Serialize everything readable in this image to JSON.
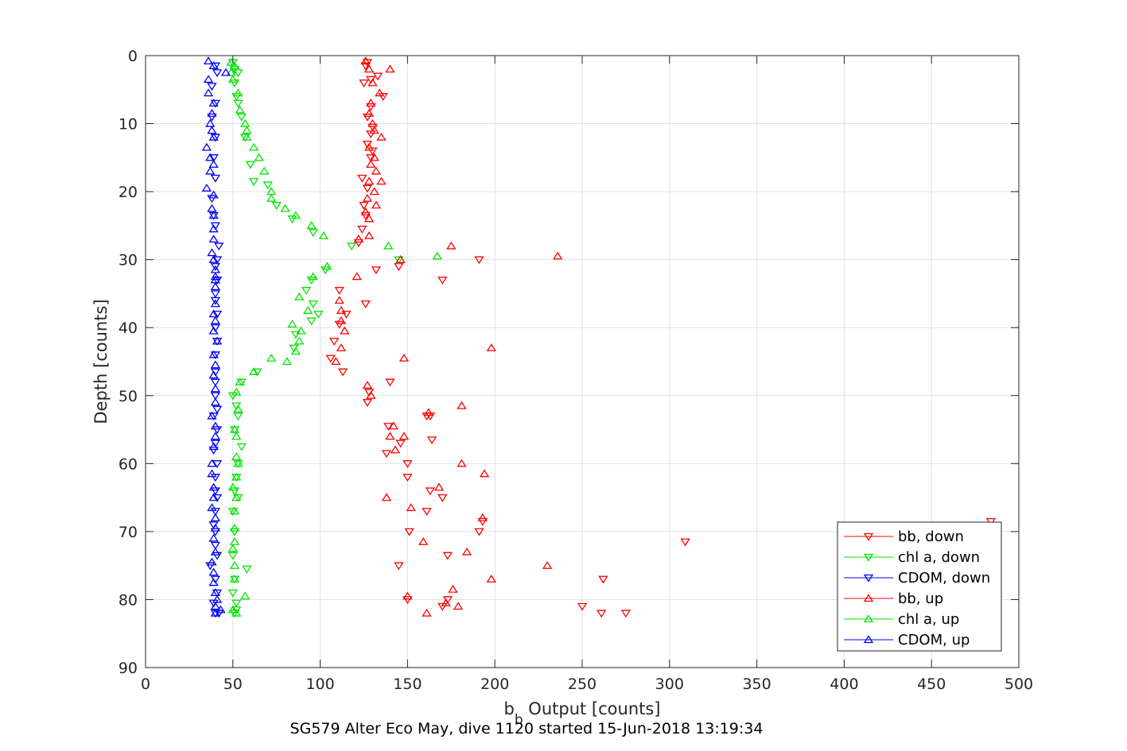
{
  "chart_data": {
    "type": "scatter",
    "xlabel_main": "b",
    "xlabel_sub": "b",
    "xlabel_rest": " Output [counts]",
    "ylabel": "Depth [counts]",
    "caption": "SG579 Alter Eco May, dive 1120 started 15-Jun-2018 13:19:34",
    "xlim": [
      0,
      500
    ],
    "ylim": [
      0,
      90
    ],
    "y_reversed": true,
    "grid": true,
    "x_ticks": [
      0,
      50,
      100,
      150,
      200,
      250,
      300,
      350,
      400,
      450,
      500
    ],
    "y_ticks": [
      0,
      10,
      20,
      30,
      40,
      50,
      60,
      70,
      80,
      90
    ],
    "legend_position": "bottom-right",
    "series": [
      {
        "name": "bb, down",
        "color": "#ff0000",
        "marker": "triangle-down",
        "points": [
          [
            127,
            1
          ],
          [
            126,
            1.5
          ],
          [
            133,
            3
          ],
          [
            129,
            3.5
          ],
          [
            125,
            4
          ],
          [
            136,
            6
          ],
          [
            129,
            7.5
          ],
          [
            127,
            9
          ],
          [
            130,
            10.5
          ],
          [
            129,
            11.5
          ],
          [
            127,
            13
          ],
          [
            130,
            14
          ],
          [
            129,
            15
          ],
          [
            124,
            18
          ],
          [
            127,
            19.5
          ],
          [
            125,
            22
          ],
          [
            126,
            23.5
          ],
          [
            124,
            25.5
          ],
          [
            122,
            27.5
          ],
          [
            132,
            31.5
          ],
          [
            126,
            36.5
          ],
          [
            170,
            33
          ],
          [
            191,
            30
          ],
          [
            145,
            31
          ],
          [
            111,
            34.5
          ],
          [
            115,
            38
          ],
          [
            111,
            39.5
          ],
          [
            108,
            42
          ],
          [
            106,
            44.5
          ],
          [
            113,
            46.5
          ],
          [
            140,
            48
          ],
          [
            127,
            51
          ],
          [
            128,
            49.5
          ],
          [
            139,
            54.5
          ],
          [
            146,
            57
          ],
          [
            138,
            58.5
          ],
          [
            150,
            60
          ],
          [
            150,
            62
          ],
          [
            163,
            64
          ],
          [
            161,
            67
          ],
          [
            151,
            70
          ],
          [
            145,
            75
          ],
          [
            173,
            73.5
          ],
          [
            173,
            80
          ],
          [
            262,
            77
          ],
          [
            250,
            81
          ],
          [
            261,
            82
          ],
          [
            275,
            82
          ],
          [
            309,
            71.5
          ],
          [
            484,
            68.5
          ],
          [
            193,
            68.5
          ],
          [
            191,
            70
          ],
          [
            170,
            65
          ],
          [
            163,
            53
          ],
          [
            164,
            56.5
          ],
          [
            161,
            53
          ],
          [
            150,
            80
          ],
          [
            170,
            81
          ]
        ]
      },
      {
        "name": "chl a, down",
        "color": "#00e600",
        "marker": "triangle-down",
        "points": [
          [
            50,
            1
          ],
          [
            51,
            2
          ],
          [
            53,
            2.5
          ],
          [
            51,
            4
          ],
          [
            52,
            6
          ],
          [
            53,
            7
          ],
          [
            55,
            9
          ],
          [
            57,
            12
          ],
          [
            60,
            16
          ],
          [
            62,
            18.5
          ],
          [
            70,
            19
          ],
          [
            75,
            22
          ],
          [
            84,
            24
          ],
          [
            96,
            26
          ],
          [
            145,
            30
          ],
          [
            118,
            28
          ],
          [
            103,
            31.5
          ],
          [
            95,
            33
          ],
          [
            92,
            34.5
          ],
          [
            96,
            36.5
          ],
          [
            99,
            38
          ],
          [
            95,
            39
          ],
          [
            86,
            41
          ],
          [
            85,
            43
          ],
          [
            64,
            46.5
          ],
          [
            55,
            48
          ],
          [
            50,
            50
          ],
          [
            52,
            51.5
          ],
          [
            53,
            53
          ],
          [
            51,
            55
          ],
          [
            55,
            57.5
          ],
          [
            53,
            60
          ],
          [
            52,
            62
          ],
          [
            51,
            64
          ],
          [
            53,
            65
          ],
          [
            50,
            67
          ],
          [
            51,
            70
          ],
          [
            50,
            73.5
          ],
          [
            58,
            75.5
          ],
          [
            51,
            77
          ],
          [
            50,
            79
          ],
          [
            52,
            80.5
          ],
          [
            51,
            82
          ],
          [
            52,
            81.5
          ]
        ]
      },
      {
        "name": "CDOM, down",
        "color": "#0000ff",
        "marker": "triangle-down",
        "points": [
          [
            40,
            1.5
          ],
          [
            41,
            2.5
          ],
          [
            38,
            4.5
          ],
          [
            40,
            7
          ],
          [
            38,
            9
          ],
          [
            40,
            12
          ],
          [
            39,
            15
          ],
          [
            40,
            18
          ],
          [
            38,
            21
          ],
          [
            39,
            23.5
          ],
          [
            40,
            25
          ],
          [
            42,
            28
          ],
          [
            41,
            30
          ],
          [
            40,
            31
          ],
          [
            41,
            33
          ],
          [
            40,
            35
          ],
          [
            40,
            36
          ],
          [
            41,
            38
          ],
          [
            40,
            40
          ],
          [
            41,
            42
          ],
          [
            40,
            44
          ],
          [
            40,
            46.5
          ],
          [
            40,
            48
          ],
          [
            40,
            50
          ],
          [
            41,
            52
          ],
          [
            39,
            53
          ],
          [
            41,
            55
          ],
          [
            40,
            57
          ],
          [
            39,
            58
          ],
          [
            41,
            60
          ],
          [
            40,
            62
          ],
          [
            40,
            64
          ],
          [
            41,
            65
          ],
          [
            40,
            67
          ],
          [
            39,
            69
          ],
          [
            40,
            70
          ],
          [
            40,
            72
          ],
          [
            41,
            73.5
          ],
          [
            37,
            75
          ],
          [
            40,
            77
          ],
          [
            41,
            79
          ],
          [
            39,
            80.5
          ],
          [
            40,
            82
          ],
          [
            42,
            82
          ]
        ]
      },
      {
        "name": "bb, up",
        "color": "#ff0000",
        "marker": "triangle-up",
        "points": [
          [
            126,
            0.8
          ],
          [
            128,
            2
          ],
          [
            140,
            2
          ],
          [
            130,
            4
          ],
          [
            134,
            5.5
          ],
          [
            129,
            7
          ],
          [
            128,
            8.5
          ],
          [
            130,
            10
          ],
          [
            131,
            11
          ],
          [
            135,
            12
          ],
          [
            128,
            13.5
          ],
          [
            131,
            15
          ],
          [
            129,
            16
          ],
          [
            132,
            17
          ],
          [
            128,
            18.5
          ],
          [
            135,
            18.5
          ],
          [
            131,
            20
          ],
          [
            127,
            21
          ],
          [
            132,
            22
          ],
          [
            126,
            23
          ],
          [
            128,
            24
          ],
          [
            128,
            26.5
          ],
          [
            122,
            27
          ],
          [
            175,
            28
          ],
          [
            236,
            29.5
          ],
          [
            146,
            30
          ],
          [
            121,
            32.5
          ],
          [
            111,
            36
          ],
          [
            112,
            37.5
          ],
          [
            112,
            39
          ],
          [
            114,
            40.5
          ],
          [
            112,
            43
          ],
          [
            109,
            45
          ],
          [
            198,
            43
          ],
          [
            148,
            44.5
          ],
          [
            127,
            48.5
          ],
          [
            129,
            50
          ],
          [
            181,
            51.5
          ],
          [
            162,
            52.5
          ],
          [
            142,
            54.5
          ],
          [
            140,
            56
          ],
          [
            148,
            56
          ],
          [
            143,
            58
          ],
          [
            181,
            60
          ],
          [
            194,
            61.5
          ],
          [
            168,
            63.5
          ],
          [
            138,
            65
          ],
          [
            152,
            66.5
          ],
          [
            193,
            68
          ],
          [
            159,
            71.5
          ],
          [
            184,
            73
          ],
          [
            230,
            75
          ],
          [
            198,
            77
          ],
          [
            176,
            78.5
          ],
          [
            172,
            80.5
          ],
          [
            179,
            81
          ],
          [
            161,
            82
          ],
          [
            150,
            79.5
          ]
        ]
      },
      {
        "name": "chl a, up",
        "color": "#00e600",
        "marker": "triangle-up",
        "points": [
          [
            49,
            1
          ],
          [
            51,
            1.5
          ],
          [
            49,
            2.5
          ],
          [
            50,
            3.5
          ],
          [
            53,
            5.5
          ],
          [
            54,
            8
          ],
          [
            57,
            10
          ],
          [
            58,
            11
          ],
          [
            58,
            12
          ],
          [
            62,
            13.5
          ],
          [
            65,
            15
          ],
          [
            68,
            17
          ],
          [
            72,
            20
          ],
          [
            72,
            21
          ],
          [
            80,
            22.5
          ],
          [
            86,
            23.5
          ],
          [
            95,
            25
          ],
          [
            102,
            26.5
          ],
          [
            139,
            28
          ],
          [
            167,
            29.5
          ],
          [
            104,
            31
          ],
          [
            96,
            32.5
          ],
          [
            88,
            35.5
          ],
          [
            93,
            37.5
          ],
          [
            84,
            39.5
          ],
          [
            89,
            40.5
          ],
          [
            88,
            42
          ],
          [
            86,
            43.5
          ],
          [
            81,
            45
          ],
          [
            72,
            44.5
          ],
          [
            62,
            46.5
          ],
          [
            54,
            48
          ],
          [
            52,
            49.5
          ],
          [
            53,
            52
          ],
          [
            51,
            55
          ],
          [
            52,
            56
          ],
          [
            52,
            59
          ],
          [
            53,
            60
          ],
          [
            52,
            62
          ],
          [
            50,
            63.5
          ],
          [
            52,
            65
          ],
          [
            51,
            67
          ],
          [
            51,
            69.5
          ],
          [
            51,
            71.5
          ],
          [
            50,
            72.5
          ],
          [
            51,
            75
          ],
          [
            51,
            77
          ],
          [
            57,
            79.5
          ],
          [
            50,
            81.5
          ],
          [
            52,
            82
          ]
        ]
      },
      {
        "name": "CDOM, up",
        "color": "#0000ff",
        "marker": "triangle-up",
        "points": [
          [
            36,
            0.8
          ],
          [
            39,
            1.5
          ],
          [
            46,
            2.5
          ],
          [
            36,
            3.5
          ],
          [
            36,
            5.5
          ],
          [
            39,
            7
          ],
          [
            38,
            8.5
          ],
          [
            37,
            10
          ],
          [
            38,
            11
          ],
          [
            39,
            12
          ],
          [
            35,
            13.5
          ],
          [
            37,
            15
          ],
          [
            39,
            16
          ],
          [
            37,
            17
          ],
          [
            35,
            19.5
          ],
          [
            39,
            20.5
          ],
          [
            38,
            22.5
          ],
          [
            39,
            23.5
          ],
          [
            39,
            25.5
          ],
          [
            39,
            27
          ],
          [
            38,
            29
          ],
          [
            39,
            30
          ],
          [
            40,
            31.5
          ],
          [
            40,
            32.5
          ],
          [
            40,
            33
          ],
          [
            40,
            34
          ],
          [
            40,
            36.5
          ],
          [
            39,
            38
          ],
          [
            40,
            39
          ],
          [
            39,
            40.5
          ],
          [
            41,
            42
          ],
          [
            39,
            44
          ],
          [
            40,
            45.5
          ],
          [
            39,
            47
          ],
          [
            40,
            49
          ],
          [
            40,
            51
          ],
          [
            38,
            53
          ],
          [
            40,
            54.5
          ],
          [
            40,
            56
          ],
          [
            39,
            57.5
          ],
          [
            38,
            60
          ],
          [
            38,
            61.5
          ],
          [
            39,
            63.5
          ],
          [
            39,
            65
          ],
          [
            38,
            66.5
          ],
          [
            40,
            68
          ],
          [
            40,
            69.5
          ],
          [
            39,
            71
          ],
          [
            40,
            73
          ],
          [
            38,
            74.5
          ],
          [
            39,
            76
          ],
          [
            39,
            77.5
          ],
          [
            40,
            79
          ],
          [
            41,
            80
          ],
          [
            40,
            81
          ],
          [
            43,
            81.5
          ],
          [
            40,
            82
          ]
        ]
      }
    ]
  }
}
